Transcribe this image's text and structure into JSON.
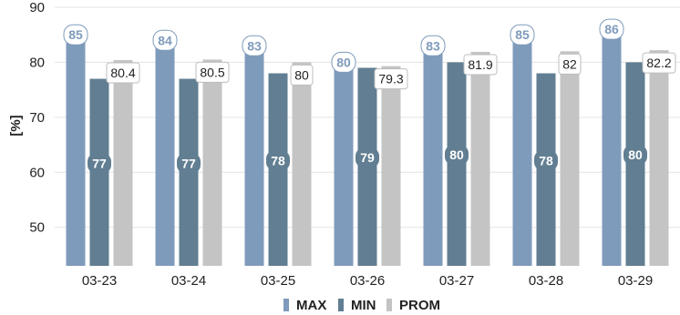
{
  "chart_data": {
    "type": "bar",
    "ylabel": "[%]",
    "categories": [
      "03-23",
      "03-24",
      "03-25",
      "03-26",
      "03-27",
      "03-28",
      "03-29"
    ],
    "ylim": [
      43,
      90
    ],
    "yticks": [
      50,
      60,
      70,
      80,
      90
    ],
    "grid": true,
    "legend_position": "bottom-center",
    "series": [
      {
        "name": "MAX",
        "color": "#7f9bbb",
        "values": [
          85,
          84,
          83,
          80,
          83,
          85,
          86
        ],
        "labels": [
          "85",
          "84",
          "83",
          "80",
          "83",
          "85",
          "86"
        ]
      },
      {
        "name": "MIN",
        "color": "#617e92",
        "values": [
          77,
          77,
          78,
          79,
          80,
          78,
          80
        ],
        "labels": [
          "77",
          "77",
          "78",
          "79",
          "80",
          "78",
          "80"
        ]
      },
      {
        "name": "PROM",
        "color": "#c4c4c4",
        "values": [
          80.4,
          80.5,
          80,
          79.3,
          81.9,
          82,
          82.2
        ],
        "labels": [
          "80.4",
          "80.5",
          "80",
          "79.3",
          "81.9",
          "82",
          "82.2"
        ]
      }
    ]
  }
}
